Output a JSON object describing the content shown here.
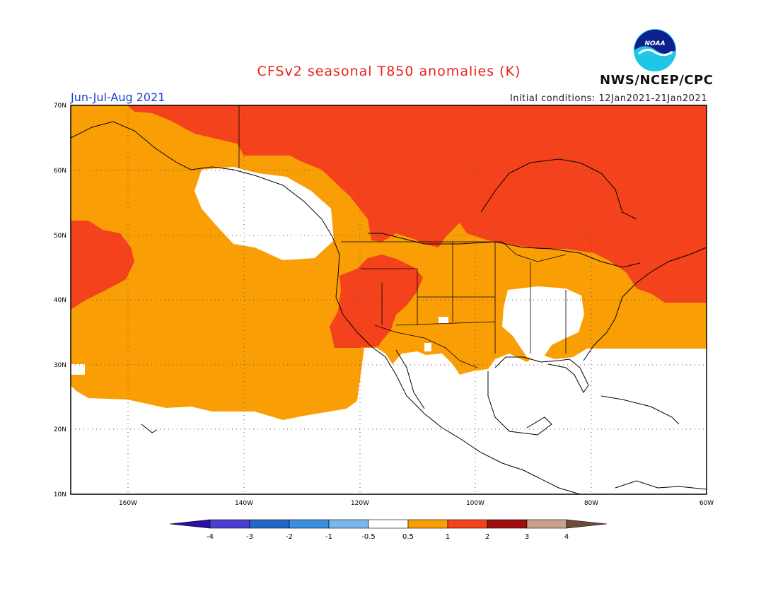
{
  "title": "CFSv2 seasonal T850 anomalies (K)",
  "period": "Jun-Jul-Aug 2021",
  "initial_conditions": "Initial conditions: 12Jan2021-21Jan2021",
  "agency": "NWS/NCEP/CPC",
  "logo_text": "NOAA",
  "lat_labels": [
    "70N",
    "60N",
    "50N",
    "40N",
    "30N",
    "20N",
    "10N"
  ],
  "lon_labels": [
    "160W",
    "140W",
    "120W",
    "100W",
    "80W",
    "60W"
  ],
  "colorbar": {
    "ticks": [
      "-4",
      "-3",
      "-2",
      "-1",
      "-0.5",
      "0.5",
      "1",
      "2",
      "3",
      "4"
    ],
    "colors": [
      "#2e0fa6",
      "#4a3fd0",
      "#2166c9",
      "#3a8ee0",
      "#7ab6ee",
      "#ffffff",
      "#f99e05",
      "#f4421c",
      "#a00e0e",
      "#c8a18e",
      "#6e4a3a"
    ]
  },
  "colors": {
    "orange": "#f99e05",
    "red": "#f4421c",
    "white": "#ffffff"
  }
}
